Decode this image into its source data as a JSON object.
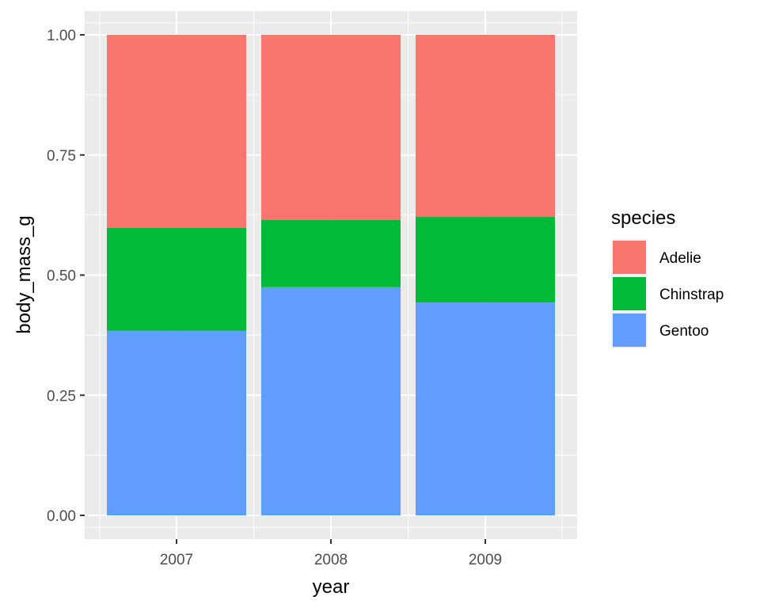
{
  "chart_data": {
    "type": "bar",
    "stacked": true,
    "position": "fill",
    "categories": [
      "2007",
      "2008",
      "2009"
    ],
    "series": [
      {
        "name": "Adelie",
        "color": "#F8766D",
        "values": [
          0.402,
          0.385,
          0.379
        ]
      },
      {
        "name": "Chinstrap",
        "color": "#00BA38",
        "values": [
          0.214,
          0.14,
          0.178
        ]
      },
      {
        "name": "Gentoo",
        "color": "#619CFF",
        "values": [
          0.384,
          0.475,
          0.443
        ]
      }
    ],
    "stack_order_bottom_to_top": [
      "Gentoo",
      "Chinstrap",
      "Adelie"
    ],
    "xlabel": "year",
    "ylabel": "body_mass_g",
    "ylim": [
      0,
      1
    ],
    "yticks": [
      "0.00",
      "0.25",
      "0.50",
      "0.75",
      "1.00"
    ],
    "ytick_values": [
      0,
      0.25,
      0.5,
      0.75,
      1.0
    ],
    "legend": {
      "title": "species",
      "placement": "right",
      "entries": [
        "Adelie",
        "Chinstrap",
        "Gentoo"
      ]
    },
    "grid": true,
    "panel_background": "#EBEBEB",
    "grid_color": "#FFFFFF"
  }
}
